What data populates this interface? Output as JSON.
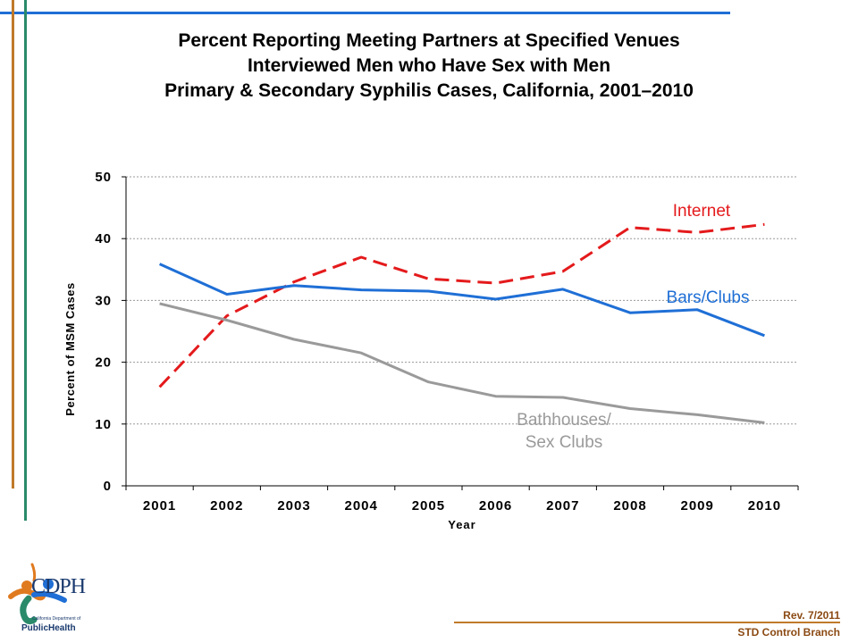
{
  "chart_data": {
    "type": "line",
    "title": "Percent Reporting Meeting Partners at Specified Venues",
    "subtitle_1": "Interviewed Men who Have Sex with Men",
    "subtitle_2": "Primary & Secondary Syphilis Cases, California, 2001–2010",
    "xlabel": "Year",
    "ylabel": "Percent of MSM Cases",
    "x": [
      "2001",
      "2002",
      "2003",
      "2004",
      "2005",
      "2006",
      "2007",
      "2008",
      "2009",
      "2010"
    ],
    "yticks": [
      "0",
      "10",
      "20",
      "30",
      "40",
      "50"
    ],
    "ylim": [
      0,
      50
    ],
    "grid": "horizontal dotted",
    "series": [
      {
        "name": "Internet",
        "label_lines": [
          "Internet"
        ],
        "color": "#e41a1c",
        "style": "dashed",
        "values": [
          16,
          27.5,
          33,
          37,
          33.5,
          32.8,
          34.7,
          41.8,
          41,
          42.3
        ]
      },
      {
        "name": "Bars/Clubs",
        "label_lines": [
          "Bars/Clubs"
        ],
        "color": "#1f6fd6",
        "style": "solid",
        "values": [
          35.9,
          31,
          32.4,
          31.7,
          31.5,
          30.2,
          31.8,
          28,
          28.5,
          24.3
        ]
      },
      {
        "name": "Bathhouses/ Sex Clubs",
        "label_lines": [
          "Bathhouses/",
          "Sex Clubs"
        ],
        "color": "#9a9a9a",
        "style": "solid",
        "values": [
          29.5,
          26.8,
          23.7,
          21.5,
          16.8,
          14.5,
          14.3,
          12.5,
          11.5,
          10.2
        ]
      }
    ]
  },
  "footer": {
    "revision": "Rev. 7/2011",
    "branch": "STD Control Branch"
  },
  "logo": {
    "acronym": "CDPH",
    "line1": "California Department of",
    "line2": "PublicHealth"
  },
  "colors": {
    "frame_blue": "#1f6fd6",
    "frame_orange": "#c07a2a",
    "frame_green": "#2a8a6a",
    "footer_brown": "#8b4a13"
  }
}
